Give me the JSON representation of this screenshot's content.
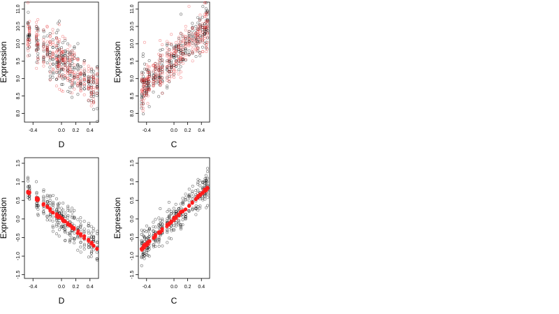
{
  "chart_data": [
    {
      "type": "scatter",
      "xlabel": "D",
      "ylabel": "Expression",
      "xlim": [
        -0.52,
        0.52
      ],
      "ylim": [
        7.75,
        11.2
      ],
      "xticks": [
        -0.4,
        0.0,
        0.2,
        0.4
      ],
      "xtick_labels": [
        "-0.4",
        "0.0",
        "0.2",
        "0.4"
      ],
      "yticks": [
        8.0,
        8.5,
        9.0,
        9.5,
        10.0,
        10.5,
        11.0
      ],
      "ytick_labels": [
        "8.0",
        "8.5",
        "9.0",
        "9.5",
        "10.0",
        "10.5",
        "11.0"
      ],
      "grid": false,
      "gen": {
        "slope": -1.6,
        "intercept": 9.5,
        "noise": 0.48,
        "extraLow": 0.5,
        "extraHigh": 0.5
      },
      "series": [
        {
          "marker": "open-circle",
          "color": "#000000",
          "opacity": 0.55
        },
        {
          "marker": "open-circle",
          "color": "#e8191a",
          "opacity": 0.45
        }
      ]
    },
    {
      "type": "scatter",
      "xlabel": "C",
      "ylabel": "Expression",
      "xlim": [
        -0.52,
        0.52
      ],
      "ylim": [
        7.75,
        11.2
      ],
      "xticks": [
        -0.4,
        0.0,
        0.2,
        0.4
      ],
      "xtick_labels": [
        "-0.4",
        "0.0",
        "0.2",
        "0.4"
      ],
      "yticks": [
        8.0,
        8.5,
        9.0,
        9.5,
        10.0,
        10.5,
        11.0
      ],
      "ytick_labels": [
        "8.0",
        "8.5",
        "9.0",
        "9.5",
        "10.0",
        "10.5",
        "11.0"
      ],
      "grid": false,
      "gen": {
        "slope": 1.9,
        "intercept": 9.6,
        "noise": 0.45,
        "extraLow": 0.4,
        "extraHigh": 0.4
      },
      "series": [
        {
          "marker": "open-circle",
          "color": "#000000",
          "opacity": 0.55
        },
        {
          "marker": "open-circle",
          "color": "#e8191a",
          "opacity": 0.45
        }
      ]
    },
    {
      "type": "scatter",
      "xlabel": "D",
      "ylabel": "Expression",
      "xlim": [
        -0.52,
        0.52
      ],
      "ylim": [
        -1.6,
        1.65
      ],
      "xticks": [
        -0.4,
        0.0,
        0.2,
        0.4
      ],
      "xtick_labels": [
        "-0.4",
        "0.0",
        "0.2",
        "0.4"
      ],
      "yticks": [
        -1.5,
        -1.0,
        -0.5,
        0.0,
        0.5,
        1.0,
        1.5
      ],
      "ytick_labels": [
        "-1.5",
        "-1.0",
        "-0.5",
        "0.0",
        "0.5",
        "1.0",
        "1.5"
      ],
      "grid": false,
      "gen": {
        "slope": -1.55,
        "intercept": 0.0,
        "noise": 0.38
      },
      "series": [
        {
          "marker": "open-circle",
          "color": "#000000",
          "opacity": 0.55
        },
        {
          "marker": "filled-circle",
          "color": "#ff1a1a",
          "opacity": 0.85,
          "role": "fitted"
        }
      ]
    },
    {
      "type": "scatter",
      "xlabel": "C",
      "ylabel": "Expression",
      "xlim": [
        -0.52,
        0.52
      ],
      "ylim": [
        -1.6,
        1.65
      ],
      "xticks": [
        -0.4,
        0.0,
        0.2,
        0.4
      ],
      "xtick_labels": [
        "-0.4",
        "0.0",
        "0.2",
        "0.4"
      ],
      "yticks": [
        -1.5,
        -1.0,
        -0.5,
        0.0,
        0.5,
        1.0,
        1.5
      ],
      "ytick_labels": [
        "-1.5",
        "-1.0",
        "-0.5",
        "0.0",
        "0.5",
        "1.0",
        "1.5"
      ],
      "grid": false,
      "gen": {
        "slope": 1.7,
        "intercept": 0.0,
        "noise": 0.38
      },
      "series": [
        {
          "marker": "open-circle",
          "color": "#000000",
          "opacity": 0.55
        },
        {
          "marker": "filled-circle",
          "color": "#ff1a1a",
          "opacity": 0.85,
          "role": "fitted"
        }
      ]
    }
  ]
}
